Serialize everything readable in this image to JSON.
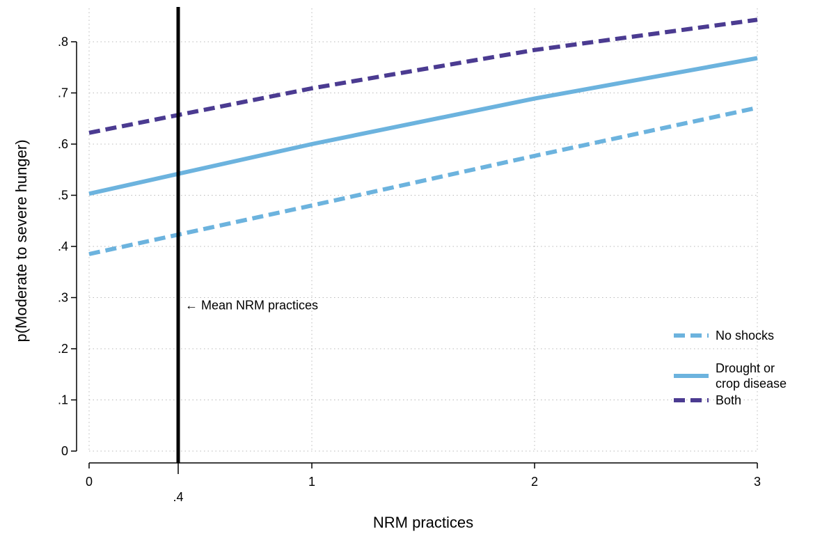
{
  "chart_data": {
    "type": "line",
    "xlabel": "NRM practices",
    "ylabel": "p(Moderate to severe hunger)",
    "xlim": [
      0,
      3
    ],
    "ylim": [
      0,
      0.8
    ],
    "x_ticks": [
      {
        "value": 0,
        "label": "0"
      },
      {
        "value": 0.4,
        "label": ".4"
      },
      {
        "value": 1,
        "label": "1"
      },
      {
        "value": 2,
        "label": "2"
      },
      {
        "value": 3,
        "label": "3"
      }
    ],
    "y_ticks": [
      {
        "value": 0,
        "label": "0"
      },
      {
        "value": 0.1,
        "label": ".1"
      },
      {
        "value": 0.2,
        "label": ".2"
      },
      {
        "value": 0.3,
        "label": ".3"
      },
      {
        "value": 0.4,
        "label": ".4"
      },
      {
        "value": 0.5,
        "label": ".5"
      },
      {
        "value": 0.6,
        "label": ".6"
      },
      {
        "value": 0.7,
        "label": ".7"
      },
      {
        "value": 0.8,
        "label": ".8"
      }
    ],
    "grid": true,
    "legend_position": "right",
    "x": [
      0,
      1,
      2,
      3
    ],
    "series": [
      {
        "name": "No shocks",
        "values": [
          0.385,
          0.48,
          0.577,
          0.671
        ],
        "color": "#6cb3de",
        "style": "dashed"
      },
      {
        "name": "Drought or crop disease",
        "name_lines": [
          "Drought or",
          "crop disease"
        ],
        "values": [
          0.503,
          0.6,
          0.689,
          0.768
        ],
        "color": "#6cb3de",
        "style": "solid"
      },
      {
        "name": "Both",
        "values": [
          0.622,
          0.709,
          0.784,
          0.843
        ],
        "color": "#4b3b91",
        "style": "dashed"
      }
    ],
    "reference_line": {
      "x": 0.4,
      "color": "#000000",
      "annotation": "← Mean NRM practices",
      "annotation_y": 0.285
    }
  }
}
